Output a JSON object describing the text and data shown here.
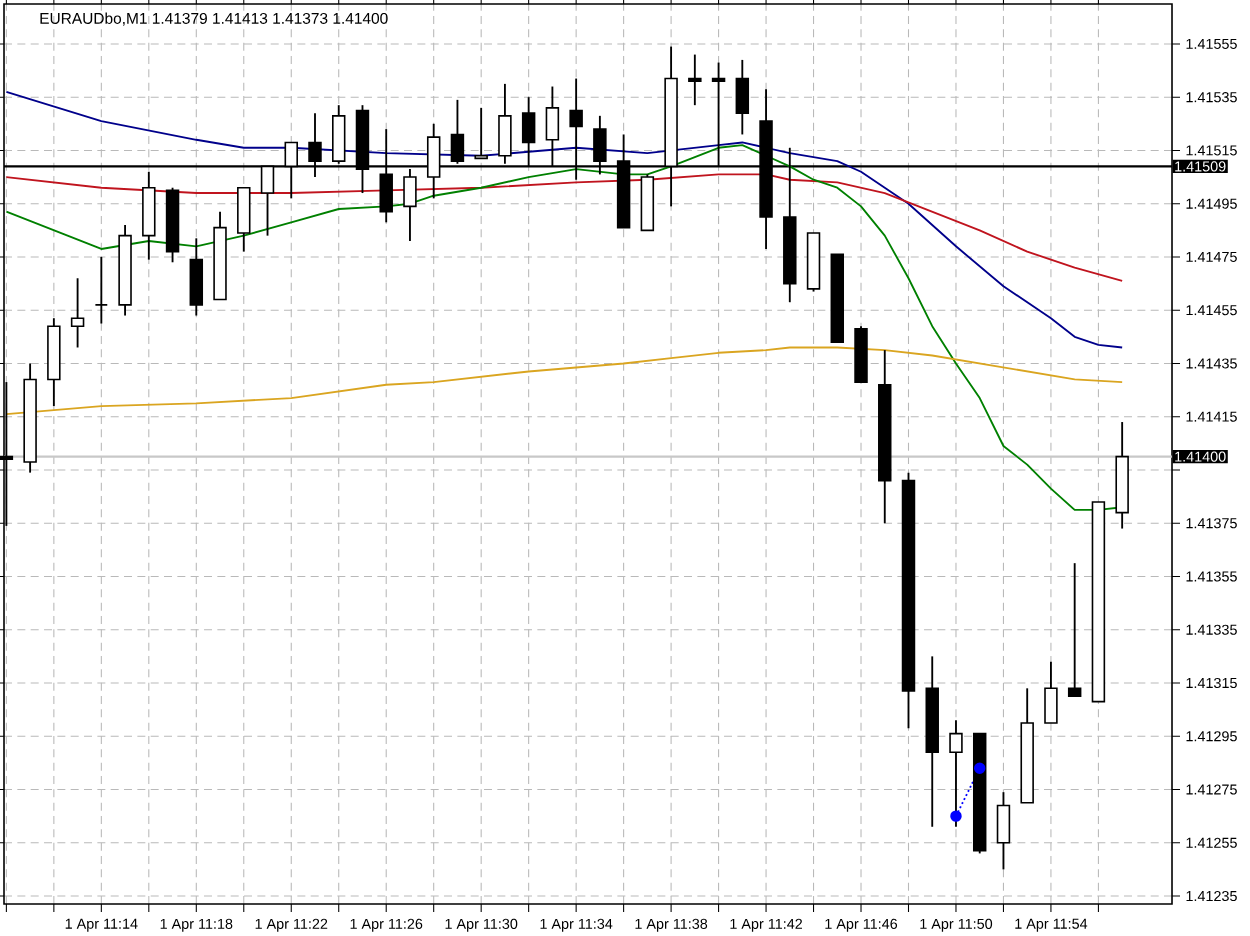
{
  "chart_data": {
    "type": "candlestick",
    "title": "EURAUDbo,M1  1.41379 1.41413 1.41373 1.41400",
    "categories": [
      null,
      null,
      null,
      null,
      "1 Apr 11:14",
      null,
      null,
      null,
      "1 Apr 11:18",
      null,
      null,
      null,
      "1 Apr 11:22",
      null,
      null,
      null,
      "1 Apr 11:26",
      null,
      null,
      null,
      "1 Apr 11:30",
      null,
      null,
      null,
      "1 Apr 11:34",
      null,
      null,
      null,
      "1 Apr 11:38",
      null,
      null,
      null,
      "1 Apr 11:42",
      null,
      null,
      null,
      "1 Apr 11:46",
      null,
      null,
      null,
      "1 Apr 11:50",
      null,
      null,
      null,
      "1 Apr 11:54",
      null,
      null,
      null
    ],
    "ohlc": [
      [
        1.414,
        1.41428,
        1.41374,
        1.41399
      ],
      [
        1.41398,
        1.41435,
        1.41394,
        1.41429
      ],
      [
        1.41429,
        1.41452,
        1.41419,
        1.41449
      ],
      [
        1.41449,
        1.41467,
        1.41441,
        1.41452
      ],
      [
        1.41457,
        1.41475,
        1.4145,
        1.41457
      ],
      [
        1.41457,
        1.41487,
        1.41453,
        1.41483
      ],
      [
        1.41483,
        1.41507,
        1.41474,
        1.41501
      ],
      [
        1.415,
        1.41501,
        1.41473,
        1.41477
      ],
      [
        1.41474,
        1.41482,
        1.41453,
        1.41457
      ],
      [
        1.41459,
        1.41492,
        1.41459,
        1.41486
      ],
      [
        1.41484,
        1.41501,
        1.41477,
        1.41501
      ],
      [
        1.41499,
        1.41509,
        1.41483,
        1.41509
      ],
      [
        1.41509,
        1.41518,
        1.41497,
        1.41518
      ],
      [
        1.41518,
        1.41529,
        1.41505,
        1.41511
      ],
      [
        1.41511,
        1.41532,
        1.4151,
        1.41528
      ],
      [
        1.4153,
        1.41532,
        1.41499,
        1.41508
      ],
      [
        1.41506,
        1.41523,
        1.41488,
        1.41492
      ],
      [
        1.41494,
        1.41508,
        1.41481,
        1.41505
      ],
      [
        1.41505,
        1.41525,
        1.41497,
        1.4152
      ],
      [
        1.41521,
        1.41534,
        1.4151,
        1.41511
      ],
      [
        1.41512,
        1.41531,
        1.41512,
        1.41513
      ],
      [
        1.41513,
        1.4154,
        1.4151,
        1.41528
      ],
      [
        1.41529,
        1.41535,
        1.41509,
        1.41518
      ],
      [
        1.41519,
        1.41539,
        1.41509,
        1.41531
      ],
      [
        1.4153,
        1.41542,
        1.41504,
        1.41524
      ],
      [
        1.41523,
        1.41528,
        1.41506,
        1.41511
      ],
      [
        1.41511,
        1.41521,
        1.41486,
        1.41486
      ],
      [
        1.41485,
        1.41506,
        1.41485,
        1.41505
      ],
      [
        1.41509,
        1.41554,
        1.41494,
        1.41542
      ],
      [
        1.41542,
        1.41551,
        1.41532,
        1.41541
      ],
      [
        1.41542,
        1.41548,
        1.41509,
        1.41541
      ],
      [
        1.41542,
        1.41549,
        1.41521,
        1.41529
      ],
      [
        1.41526,
        1.41538,
        1.41478,
        1.4149
      ],
      [
        1.4149,
        1.41516,
        1.41458,
        1.41465
      ],
      [
        1.41463,
        1.41484,
        1.41462,
        1.41484
      ],
      [
        1.41476,
        1.41476,
        1.41443,
        1.41443
      ],
      [
        1.41448,
        1.41449,
        1.41428,
        1.41428
      ],
      [
        1.41427,
        1.4144,
        1.41375,
        1.41391
      ],
      [
        1.41391,
        1.41394,
        1.41298,
        1.41312
      ],
      [
        1.41313,
        1.41325,
        1.41261,
        1.41289
      ],
      [
        1.41289,
        1.41301,
        1.41261,
        1.41296
      ],
      [
        1.41296,
        1.41296,
        1.41251,
        1.41252
      ],
      [
        1.41255,
        1.41274,
        1.41245,
        1.41269
      ],
      [
        1.4127,
        1.41313,
        1.4127,
        1.413
      ],
      [
        1.413,
        1.41323,
        1.413,
        1.41313
      ],
      [
        1.41313,
        1.4136,
        1.4131,
        1.4131
      ],
      [
        1.41308,
        1.41383,
        1.41308,
        1.41383
      ],
      [
        1.41379,
        1.41413,
        1.41373,
        1.414
      ]
    ],
    "series": [
      {
        "type": "line",
        "color": "#00008b",
        "values": [
          1.41537,
          null,
          null,
          null,
          1.41526,
          null,
          null,
          null,
          1.41519,
          null,
          1.41516,
          null,
          1.41516,
          null,
          null,
          null,
          1.41514,
          null,
          null,
          null,
          1.41513,
          null,
          null,
          null,
          1.41516,
          null,
          null,
          1.41514,
          null,
          null,
          1.41517,
          1.41518,
          null,
          1.41514,
          null,
          1.41511,
          1.41507,
          1.41501,
          1.41495,
          null,
          1.41479,
          null,
          1.41464,
          null,
          1.41452,
          1.41445,
          1.41442,
          1.41441
        ]
      },
      {
        "type": "line",
        "color": "#c0141e",
        "values": [
          1.41505,
          null,
          null,
          null,
          1.41501,
          null,
          null,
          null,
          1.41499,
          null,
          null,
          null,
          1.41499,
          null,
          null,
          null,
          1.415,
          null,
          null,
          null,
          1.41501,
          null,
          null,
          null,
          1.41503,
          null,
          null,
          1.41504,
          null,
          null,
          1.41506,
          null,
          1.41506,
          1.41504,
          null,
          1.41503,
          null,
          1.41499,
          null,
          1.41492,
          null,
          1.41485,
          null,
          1.41477,
          null,
          1.41471,
          null,
          1.41466
        ]
      },
      {
        "type": "line",
        "color": "#008000",
        "values": [
          1.41492,
          null,
          null,
          null,
          1.41478,
          null,
          1.41481,
          null,
          1.41479,
          null,
          1.41483,
          null,
          1.41488,
          null,
          1.41493,
          null,
          1.41494,
          1.41495,
          1.41498,
          null,
          1.41501,
          null,
          1.41505,
          null,
          1.41508,
          null,
          1.41506,
          1.41506,
          1.41509,
          null,
          1.41516,
          1.41517,
          1.41513,
          1.41509,
          1.41504,
          1.41501,
          1.41494,
          1.41483,
          1.41467,
          1.41449,
          1.41435,
          1.41422,
          1.41404,
          1.41397,
          1.41388,
          1.4138,
          1.4138,
          1.41381
        ]
      },
      {
        "type": "line",
        "color": "#daa520",
        "values": [
          1.41416,
          null,
          null,
          null,
          1.41419,
          null,
          null,
          null,
          1.4142,
          null,
          null,
          null,
          1.41422,
          null,
          null,
          null,
          1.41427,
          null,
          1.41428,
          null,
          null,
          null,
          1.41432,
          null,
          null,
          null,
          1.41435,
          null,
          1.41437,
          null,
          1.41439,
          null,
          1.4144,
          1.41441,
          null,
          1.41441,
          null,
          1.4144,
          null,
          1.41438,
          null,
          1.41435,
          null,
          1.41432,
          null,
          1.41429,
          null,
          1.41428
        ]
      },
      {
        "type": "line",
        "color": "#0000ff",
        "line_style": "dotted",
        "marker": "circle",
        "values": [
          null,
          null,
          null,
          null,
          null,
          null,
          null,
          null,
          null,
          null,
          null,
          null,
          null,
          null,
          null,
          null,
          null,
          null,
          null,
          null,
          null,
          null,
          null,
          null,
          null,
          null,
          null,
          null,
          null,
          null,
          null,
          null,
          null,
          null,
          null,
          null,
          null,
          null,
          null,
          null,
          1.41265,
          1.41283,
          null,
          null,
          null,
          null,
          null,
          null
        ]
      }
    ],
    "ylim": [
      1.41232,
      1.4157
    ],
    "yticks": [
      1.41555,
      1.41535,
      1.41515,
      1.41495,
      1.41475,
      1.41455,
      1.41435,
      1.41415,
      {
        "value": 1.41395,
        "label": null
      },
      1.41375,
      1.41355,
      1.41335,
      1.41315,
      1.41295,
      1.41275,
      1.41255,
      1.41235
    ],
    "grid": true,
    "ref_lines": [
      {
        "axis": "y",
        "value": 1.41509,
        "label": "1.41509",
        "color": "#000000"
      },
      {
        "axis": "y",
        "value": 1.414,
        "label": "1.41400",
        "color": "#c8c8c8"
      }
    ]
  }
}
